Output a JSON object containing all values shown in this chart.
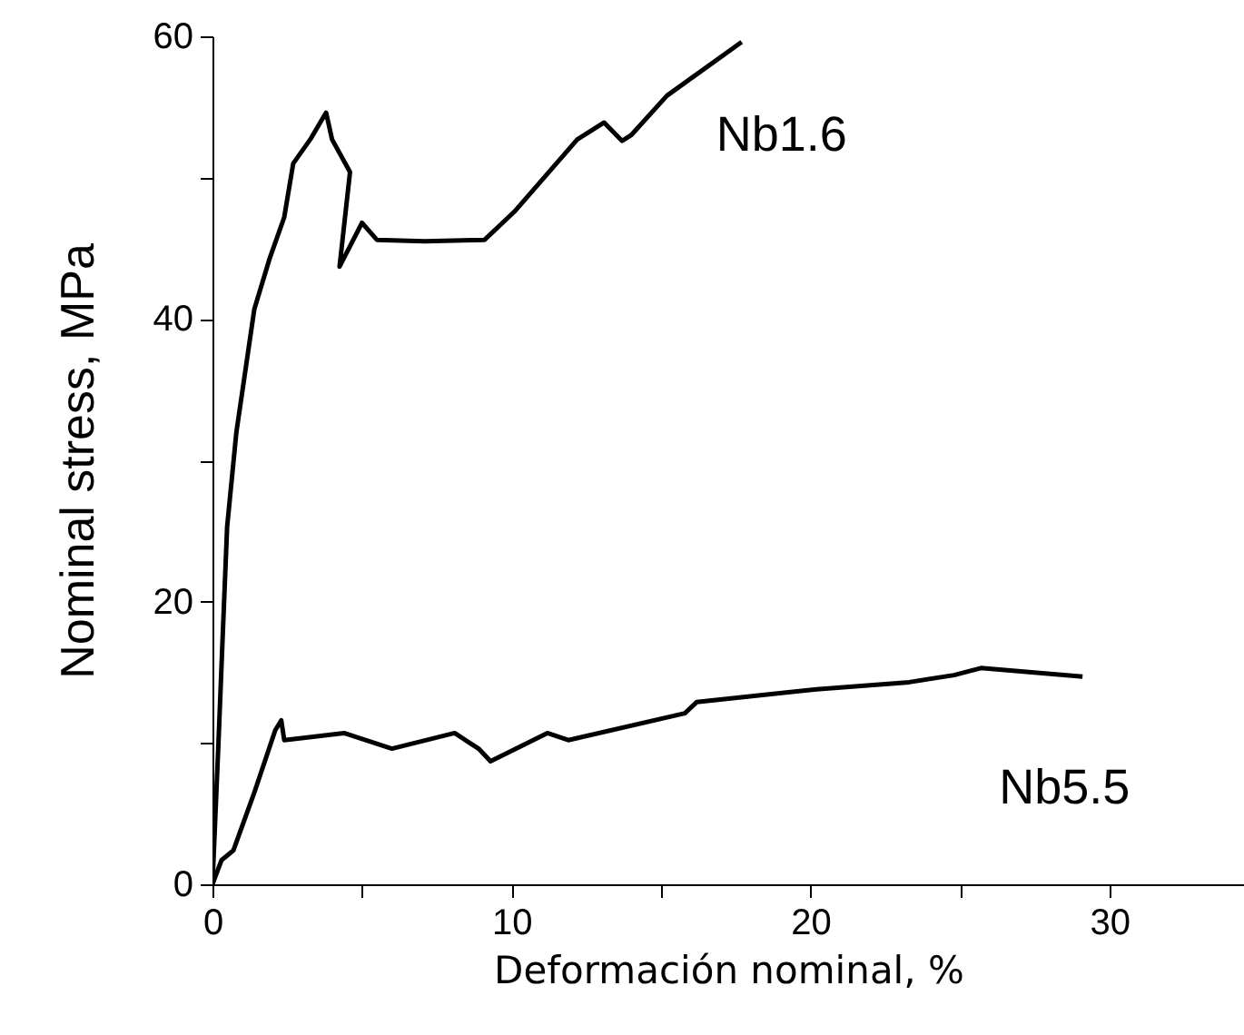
{
  "chart_data": {
    "type": "line",
    "xlabel": "Deformación nominal, %",
    "ylabel": "Nominal stress, MPa",
    "xlim": [
      0,
      34.5
    ],
    "ylim": [
      0,
      60
    ],
    "xticks": [
      0,
      {
        "value": 5,
        "label": null
      },
      10,
      {
        "value": 15,
        "label": null
      },
      20,
      {
        "value": 25,
        "label": null
      },
      30
    ],
    "yticks": [
      0,
      {
        "value": 10,
        "label": null
      },
      20,
      {
        "value": 30,
        "label": null
      },
      40,
      {
        "value": 50,
        "label": null
      },
      60
    ],
    "grid": false,
    "legend": false,
    "marker": "none",
    "line_style": "solid",
    "series": [
      {
        "name": "Nb1.6",
        "color": "#000000",
        "x": [
          0,
          0.2,
          0.35,
          0.49,
          0.8,
          1.2,
          1.4,
          1.9,
          2.4,
          2.7,
          3.3,
          3.8,
          4.0,
          4.6,
          4.25,
          5.0,
          5.5,
          7.1,
          9.1,
          10.1,
          12.2,
          13.1,
          13.7,
          14.0,
          15.2,
          17.7
        ],
        "values": [
          0,
          10,
          18,
          25.3,
          32,
          37.8,
          40.7,
          44.2,
          47.2,
          51,
          52.8,
          54.6,
          52.7,
          50.4,
          43.7,
          46.8,
          45.6,
          45.5,
          45.6,
          47.6,
          52.7,
          53.9,
          52.6,
          53.0,
          55.8,
          59.6
        ]
      },
      {
        "name": "Nb5.5",
        "color": "#000000",
        "x": [
          0,
          0.3,
          0.7,
          1.4,
          2.1,
          2.3,
          2.4,
          4.4,
          6.0,
          8.1,
          8.9,
          9.3,
          11.2,
          11.9,
          15.8,
          16.2,
          20.2,
          23.3,
          24.8,
          25.7,
          29.1
        ],
        "values": [
          0,
          1.7,
          2.4,
          6.5,
          10.9,
          11.6,
          10.2,
          10.7,
          9.6,
          10.7,
          9.6,
          8.7,
          10.7,
          10.2,
          12.1,
          12.9,
          13.8,
          14.3,
          14.8,
          15.3,
          14.7
        ]
      }
    ]
  }
}
